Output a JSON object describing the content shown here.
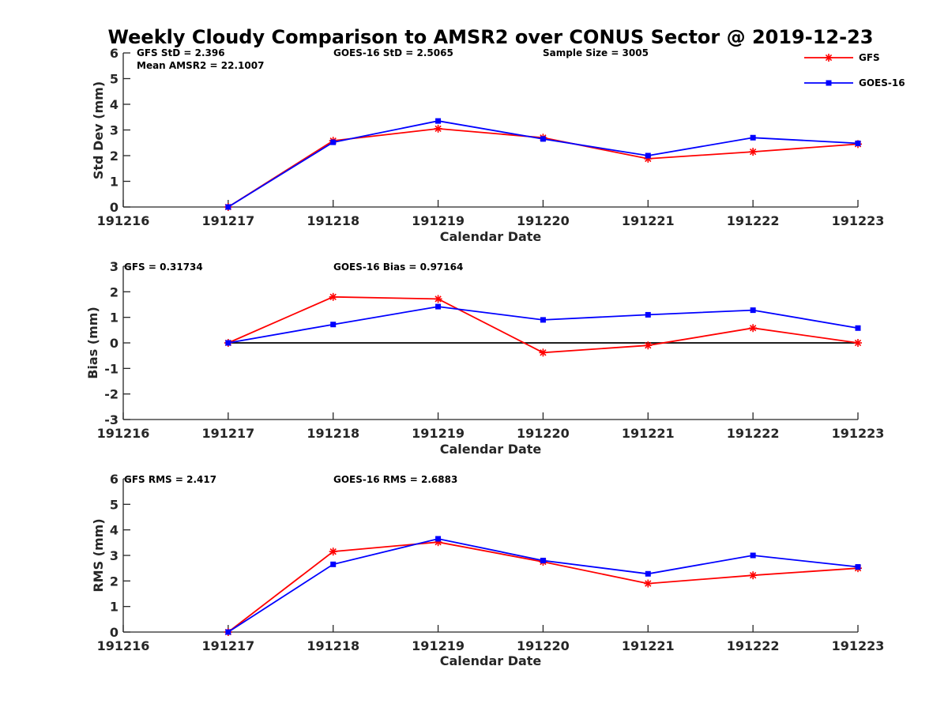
{
  "chart_data": {
    "title": "Weekly Cloudy Comparison to AMSR2 over CONUS Sector @ 2019-12-23",
    "legend": {
      "placement": "top-right",
      "entries": [
        {
          "name": "GFS",
          "color": "#ff0000",
          "marker": "asterisk"
        },
        {
          "name": "GOES-16",
          "color": "#0000ff",
          "marker": "square"
        }
      ]
    },
    "panels": [
      {
        "type": "line",
        "ylabel": "Std Dev (mm)",
        "xlabel": "Calendar Date",
        "ylim": [
          0,
          6
        ],
        "yticks": [
          "0",
          "1",
          "2",
          "3",
          "4",
          "5",
          "6"
        ],
        "categories": [
          "191216",
          "191217",
          "191218",
          "191219",
          "191220",
          "191221",
          "191222",
          "191223"
        ],
        "annotations": [
          "GFS StD = 2.396",
          "Mean AMSR2 = 22.1007",
          "GOES-16 StD = 2.5065",
          "Sample Size = 3005"
        ],
        "zero_line": false,
        "series": [
          {
            "name": "GFS",
            "color": "#ff0000",
            "x": [
              1,
              2,
              3,
              4,
              5,
              6,
              7
            ],
            "values": [
              0.0,
              2.58,
              3.05,
              2.7,
              1.88,
              2.15,
              2.45
            ]
          },
          {
            "name": "GOES-16",
            "color": "#0000ff",
            "x": [
              1,
              2,
              3,
              4,
              5,
              6,
              7
            ],
            "values": [
              0.0,
              2.52,
              3.35,
              2.65,
              2.0,
              2.7,
              2.48
            ]
          }
        ]
      },
      {
        "type": "line",
        "ylabel": "Bias (mm)",
        "xlabel": "Calendar Date",
        "ylim": [
          -3,
          3
        ],
        "yticks": [
          "-3",
          "-2",
          "-1",
          "0",
          "1",
          "2",
          "3"
        ],
        "categories": [
          "191216",
          "191217",
          "191218",
          "191219",
          "191220",
          "191221",
          "191222",
          "191223"
        ],
        "annotations": [
          "GFS = 0.31734",
          "GOES-16 Bias  = 0.97164"
        ],
        "zero_line": true,
        "series": [
          {
            "name": "GFS",
            "color": "#ff0000",
            "x": [
              1,
              2,
              3,
              4,
              5,
              6,
              7
            ],
            "values": [
              0.0,
              1.8,
              1.72,
              -0.38,
              -0.1,
              0.58,
              0.0
            ]
          },
          {
            "name": "GOES-16",
            "color": "#0000ff",
            "x": [
              1,
              2,
              3,
              4,
              5,
              6,
              7
            ],
            "values": [
              0.0,
              0.72,
              1.42,
              0.9,
              1.1,
              1.28,
              0.58
            ]
          }
        ]
      },
      {
        "type": "line",
        "ylabel": "RMS (mm)",
        "xlabel": "Calendar Date",
        "ylim": [
          0,
          6
        ],
        "yticks": [
          "0",
          "1",
          "2",
          "3",
          "4",
          "5",
          "6"
        ],
        "categories": [
          "191216",
          "191217",
          "191218",
          "191219",
          "191220",
          "191221",
          "191222",
          "191223"
        ],
        "annotations": [
          "GFS RMS = 2.417",
          "GOES-16 RMS = 2.6883"
        ],
        "zero_line": false,
        "series": [
          {
            "name": "GFS",
            "color": "#ff0000",
            "x": [
              1,
              2,
              3,
              4,
              5,
              6,
              7
            ],
            "values": [
              0.0,
              3.15,
              3.52,
              2.75,
              1.9,
              2.22,
              2.5
            ]
          },
          {
            "name": "GOES-16",
            "color": "#0000ff",
            "x": [
              1,
              2,
              3,
              4,
              5,
              6,
              7
            ],
            "values": [
              0.0,
              2.65,
              3.65,
              2.8,
              2.28,
              3.0,
              2.55
            ]
          }
        ]
      }
    ]
  }
}
